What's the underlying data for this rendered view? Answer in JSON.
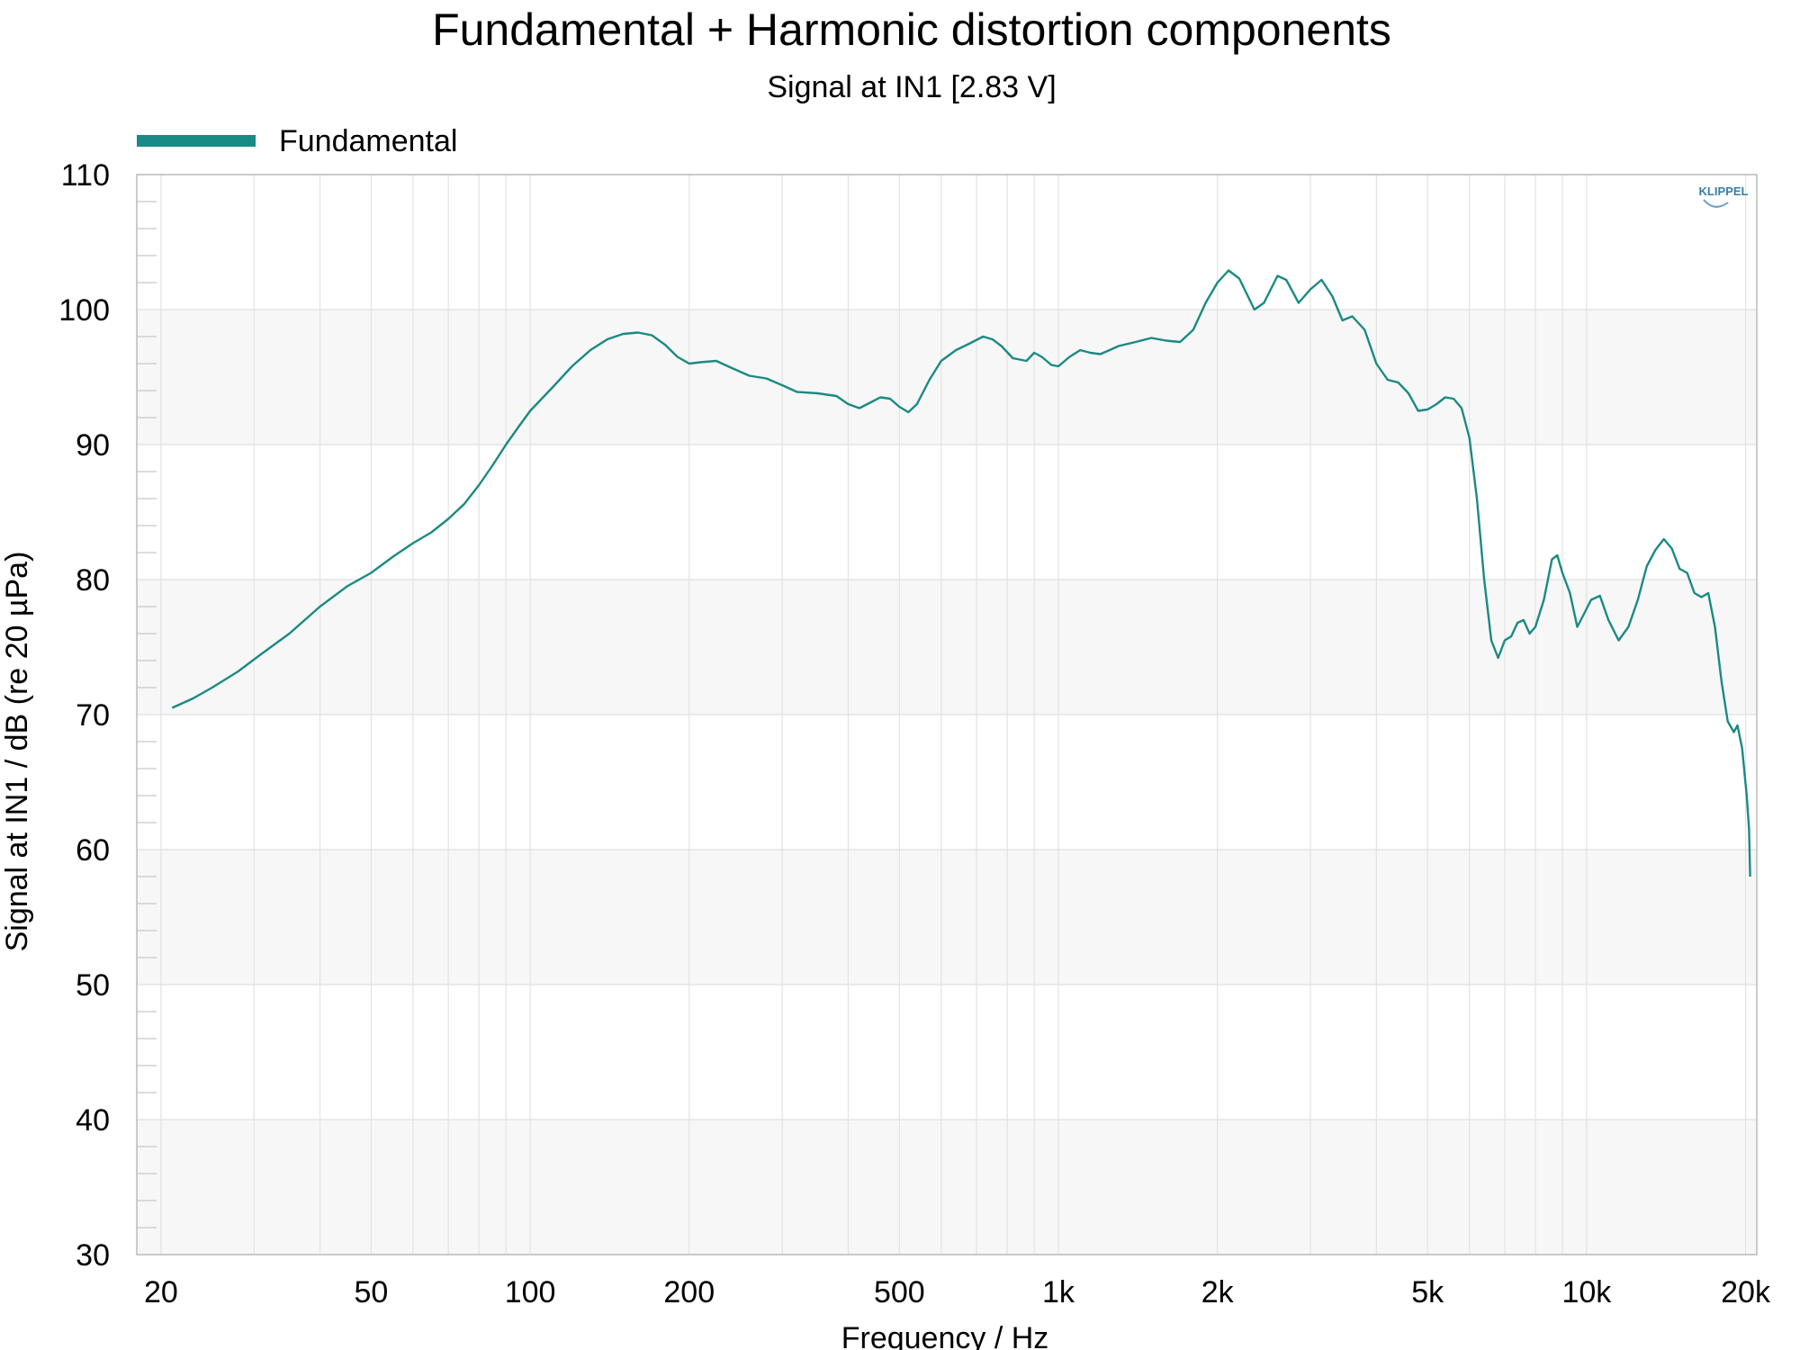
{
  "chart_data": {
    "type": "line",
    "title": "Fundamental + Harmonic distortion components",
    "subtitle": "Signal at IN1 [2.83 V]",
    "xlabel": "Frequency / Hz",
    "ylabel": "Signal at IN1 / dB (re 20 µPa)",
    "x_scale": "log",
    "xlim": [
      18,
      21000
    ],
    "ylim": [
      30,
      110
    ],
    "x_ticks": [
      20,
      50,
      100,
      200,
      500,
      1000,
      2000,
      5000,
      10000,
      20000
    ],
    "x_tick_labels": [
      "20",
      "50",
      "100",
      "200",
      "500",
      "1k",
      "2k",
      "5k",
      "10k",
      "20k"
    ],
    "y_ticks": [
      30,
      40,
      50,
      60,
      70,
      80,
      90,
      100,
      110
    ],
    "y_tick_labels": [
      "30",
      "40",
      "50",
      "60",
      "70",
      "80",
      "90",
      "100",
      "110"
    ],
    "grid": true,
    "legend_position": "top-left",
    "logo_text": "KLIPPEL",
    "series": [
      {
        "name": "Fundamental",
        "color": "#1a8a84",
        "points": [
          [
            21,
            70.5
          ],
          [
            23,
            71.2
          ],
          [
            25,
            72.0
          ],
          [
            28,
            73.2
          ],
          [
            31,
            74.5
          ],
          [
            35,
            76.0
          ],
          [
            40,
            78.0
          ],
          [
            45,
            79.5
          ],
          [
            50,
            80.5
          ],
          [
            55,
            81.7
          ],
          [
            60,
            82.7
          ],
          [
            65,
            83.5
          ],
          [
            70,
            84.5
          ],
          [
            75,
            85.6
          ],
          [
            80,
            87.0
          ],
          [
            85,
            88.5
          ],
          [
            90,
            90.0
          ],
          [
            95,
            91.3
          ],
          [
            100,
            92.5
          ],
          [
            110,
            94.2
          ],
          [
            120,
            95.8
          ],
          [
            130,
            97.0
          ],
          [
            140,
            97.8
          ],
          [
            150,
            98.2
          ],
          [
            160,
            98.3
          ],
          [
            170,
            98.1
          ],
          [
            180,
            97.4
          ],
          [
            190,
            96.5
          ],
          [
            200,
            96.0
          ],
          [
            210,
            96.1
          ],
          [
            225,
            96.2
          ],
          [
            240,
            95.7
          ],
          [
            260,
            95.1
          ],
          [
            280,
            94.9
          ],
          [
            300,
            94.4
          ],
          [
            320,
            93.9
          ],
          [
            350,
            93.8
          ],
          [
            380,
            93.6
          ],
          [
            400,
            93.0
          ],
          [
            420,
            92.7
          ],
          [
            440,
            93.1
          ],
          [
            460,
            93.5
          ],
          [
            480,
            93.4
          ],
          [
            500,
            92.8
          ],
          [
            520,
            92.4
          ],
          [
            540,
            93.0
          ],
          [
            570,
            94.8
          ],
          [
            600,
            96.2
          ],
          [
            640,
            97.0
          ],
          [
            680,
            97.5
          ],
          [
            720,
            98.0
          ],
          [
            750,
            97.8
          ],
          [
            780,
            97.3
          ],
          [
            820,
            96.4
          ],
          [
            870,
            96.2
          ],
          [
            900,
            96.8
          ],
          [
            930,
            96.5
          ],
          [
            970,
            95.9
          ],
          [
            1000,
            95.8
          ],
          [
            1050,
            96.5
          ],
          [
            1100,
            97.0
          ],
          [
            1150,
            96.8
          ],
          [
            1200,
            96.7
          ],
          [
            1250,
            97.0
          ],
          [
            1300,
            97.3
          ],
          [
            1400,
            97.6
          ],
          [
            1500,
            97.9
          ],
          [
            1600,
            97.7
          ],
          [
            1700,
            97.6
          ],
          [
            1800,
            98.5
          ],
          [
            1900,
            100.5
          ],
          [
            2000,
            102.0
          ],
          [
            2100,
            102.9
          ],
          [
            2200,
            102.3
          ],
          [
            2350,
            100.0
          ],
          [
            2450,
            100.5
          ],
          [
            2600,
            102.5
          ],
          [
            2700,
            102.2
          ],
          [
            2850,
            100.5
          ],
          [
            3000,
            101.5
          ],
          [
            3150,
            102.2
          ],
          [
            3300,
            101.0
          ],
          [
            3450,
            99.2
          ],
          [
            3600,
            99.5
          ],
          [
            3800,
            98.5
          ],
          [
            4000,
            96.0
          ],
          [
            4200,
            94.8
          ],
          [
            4400,
            94.6
          ],
          [
            4600,
            93.8
          ],
          [
            4800,
            92.5
          ],
          [
            5000,
            92.6
          ],
          [
            5200,
            93.0
          ],
          [
            5400,
            93.5
          ],
          [
            5600,
            93.4
          ],
          [
            5800,
            92.7
          ],
          [
            6000,
            90.5
          ],
          [
            6200,
            86.0
          ],
          [
            6400,
            80.0
          ],
          [
            6600,
            75.5
          ],
          [
            6800,
            74.2
          ],
          [
            7000,
            75.5
          ],
          [
            7200,
            75.8
          ],
          [
            7400,
            76.8
          ],
          [
            7600,
            77.0
          ],
          [
            7800,
            76.0
          ],
          [
            8000,
            76.5
          ],
          [
            8300,
            78.5
          ],
          [
            8600,
            81.5
          ],
          [
            8800,
            81.8
          ],
          [
            9000,
            80.5
          ],
          [
            9300,
            79.0
          ],
          [
            9600,
            76.5
          ],
          [
            9900,
            77.5
          ],
          [
            10200,
            78.5
          ],
          [
            10600,
            78.8
          ],
          [
            11000,
            77.0
          ],
          [
            11500,
            75.5
          ],
          [
            12000,
            76.5
          ],
          [
            12500,
            78.5
          ],
          [
            13000,
            81.0
          ],
          [
            13500,
            82.2
          ],
          [
            14000,
            83.0
          ],
          [
            14500,
            82.3
          ],
          [
            15000,
            80.8
          ],
          [
            15500,
            80.5
          ],
          [
            16000,
            79.0
          ],
          [
            16500,
            78.7
          ],
          [
            17000,
            79.0
          ],
          [
            17500,
            76.5
          ],
          [
            18000,
            72.5
          ],
          [
            18500,
            69.5
          ],
          [
            19000,
            68.7
          ],
          [
            19300,
            69.2
          ],
          [
            19700,
            67.5
          ],
          [
            20100,
            64.0
          ],
          [
            20300,
            61.5
          ],
          [
            20400,
            58.0
          ]
        ]
      }
    ]
  }
}
